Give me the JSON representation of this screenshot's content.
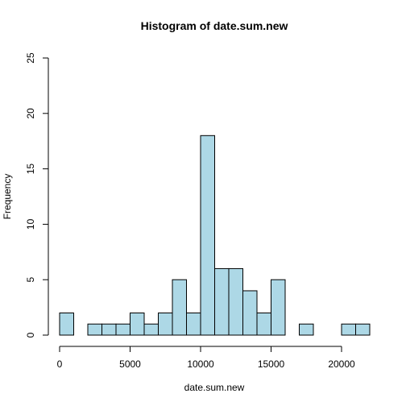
{
  "chart_data": {
    "type": "bar",
    "title": "Histogram of date.sum.new",
    "xlabel": "date.sum.new",
    "ylabel": "Frequency",
    "bar_color": "#add8e6",
    "bin_width": 1000,
    "bins": [
      {
        "start": 0,
        "end": 1000,
        "count": 2
      },
      {
        "start": 1000,
        "end": 2000,
        "count": 0
      },
      {
        "start": 2000,
        "end": 3000,
        "count": 1
      },
      {
        "start": 3000,
        "end": 4000,
        "count": 1
      },
      {
        "start": 4000,
        "end": 5000,
        "count": 1
      },
      {
        "start": 5000,
        "end": 6000,
        "count": 2
      },
      {
        "start": 6000,
        "end": 7000,
        "count": 1
      },
      {
        "start": 7000,
        "end": 8000,
        "count": 2
      },
      {
        "start": 8000,
        "end": 9000,
        "count": 5
      },
      {
        "start": 9000,
        "end": 10000,
        "count": 2
      },
      {
        "start": 10000,
        "end": 11000,
        "count": 18
      },
      {
        "start": 11000,
        "end": 12000,
        "count": 6
      },
      {
        "start": 12000,
        "end": 13000,
        "count": 6
      },
      {
        "start": 13000,
        "end": 14000,
        "count": 4
      },
      {
        "start": 14000,
        "end": 15000,
        "count": 2
      },
      {
        "start": 15000,
        "end": 16000,
        "count": 5
      },
      {
        "start": 16000,
        "end": 17000,
        "count": 0
      },
      {
        "start": 17000,
        "end": 18000,
        "count": 1
      },
      {
        "start": 18000,
        "end": 19000,
        "count": 0
      },
      {
        "start": 19000,
        "end": 20000,
        "count": 0
      },
      {
        "start": 20000,
        "end": 21000,
        "count": 1
      },
      {
        "start": 21000,
        "end": 22000,
        "count": 1
      }
    ],
    "xlim": [
      0,
      22000
    ],
    "ylim": [
      0,
      25
    ],
    "x_ticks": [
      0,
      5000,
      10000,
      15000,
      20000
    ],
    "x_tick_labels": [
      "0",
      "5000",
      "10000",
      "15000",
      "20000"
    ],
    "y_ticks": [
      0,
      5,
      10,
      15,
      20,
      25
    ],
    "y_tick_labels": [
      "0",
      "5",
      "10",
      "15",
      "20",
      "25"
    ],
    "grid": false,
    "legend": "none"
  }
}
